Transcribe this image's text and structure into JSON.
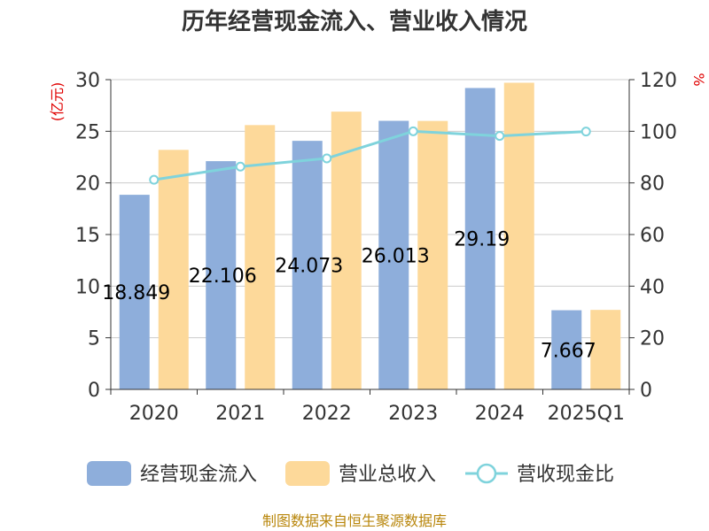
{
  "chart_data": {
    "type": "bar",
    "title": "历年经营现金流入、营业收入情况",
    "categories": [
      "2020",
      "2021",
      "2022",
      "2023",
      "2024",
      "2025Q1"
    ],
    "series": [
      {
        "name": "经营现金流入",
        "type": "bar",
        "axis": "left",
        "color": "#8eaedb",
        "values": [
          18.849,
          22.106,
          24.073,
          26.013,
          29.19,
          7.667
        ],
        "labels": [
          "18.849",
          "22.106",
          "24.073",
          "26.013",
          "29.19",
          "7.667"
        ]
      },
      {
        "name": "营业总收入",
        "type": "bar",
        "axis": "left",
        "color": "#fdd99a",
        "values": [
          23.2,
          25.6,
          26.9,
          26.0,
          29.7,
          7.7
        ]
      },
      {
        "name": "营收现金比",
        "type": "line",
        "axis": "right",
        "color": "#7fd3dc",
        "values": [
          81.2,
          86.3,
          89.5,
          100.0,
          98.2,
          99.9
        ]
      }
    ],
    "y_left": {
      "unit": "(亿元)",
      "ylim": [
        0,
        30
      ],
      "ticks": [
        "0",
        "5",
        "10",
        "15",
        "20",
        "25",
        "30"
      ]
    },
    "y_right": {
      "unit": "%",
      "ylim": [
        0,
        120
      ],
      "ticks": [
        "0",
        "20",
        "40",
        "60",
        "80",
        "100",
        "120"
      ]
    },
    "grid": true,
    "legend_position": "bottom"
  },
  "source": "制图数据来自恒生聚源数据库"
}
